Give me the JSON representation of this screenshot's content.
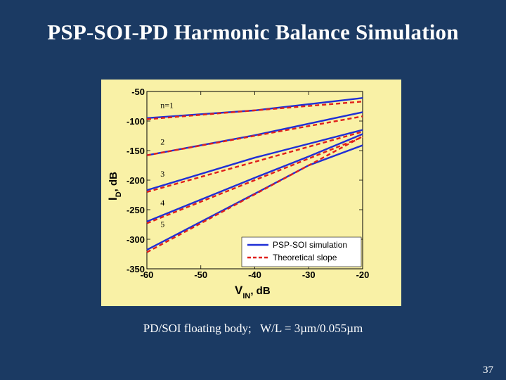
{
  "slide": {
    "title": "PSP-SOI-PD Harmonic Balance Simulation",
    "caption": "PD/SOI floating body;   W/L = 3µm/0.055µm",
    "page_number": "37"
  },
  "chart_data": {
    "type": "line",
    "xlabel_main": "V",
    "xlabel_sub": "IN",
    "xlabel_unit": ", dB",
    "ylabel_main": "I",
    "ylabel_sub": "D",
    "ylabel_unit": ", dB",
    "xlim": [
      -60,
      -20
    ],
    "ylim": [
      -350,
      -50
    ],
    "xticks": [
      -60,
      -50,
      -40,
      -30,
      -20
    ],
    "yticks": [
      -50,
      -100,
      -150,
      -200,
      -250,
      -300,
      -350
    ],
    "grid": false,
    "legend_position": "bottom-right",
    "legend": [
      {
        "label": "PSP-SOI simulation",
        "color": "#1f2fd6",
        "style": "solid"
      },
      {
        "label": "Theoretical slope",
        "color": "#e0201b",
        "style": "dashed"
      }
    ],
    "curve_labels": [
      {
        "text": "n=1",
        "x": -57.5,
        "y": -78
      },
      {
        "text": "2",
        "x": -57.5,
        "y": -140
      },
      {
        "text": "3",
        "x": -57.5,
        "y": -194
      },
      {
        "text": "4",
        "x": -57.5,
        "y": -243
      },
      {
        "text": "5",
        "x": -57.5,
        "y": -279
      }
    ],
    "series": [
      {
        "group": "PSP-SOI simulation",
        "harmonic": 1,
        "x": [
          -60,
          -40,
          -20
        ],
        "y": [
          -95,
          -82,
          -61
        ]
      },
      {
        "group": "PSP-SOI simulation",
        "harmonic": 2,
        "x": [
          -60,
          -40,
          -20
        ],
        "y": [
          -158,
          -124,
          -85
        ]
      },
      {
        "group": "PSP-SOI simulation",
        "harmonic": 3,
        "x": [
          -60,
          -40,
          -20
        ],
        "y": [
          -217,
          -162,
          -115
        ]
      },
      {
        "group": "PSP-SOI simulation",
        "harmonic": 4,
        "x": [
          -60,
          -40,
          -30,
          -20
        ],
        "y": [
          -270,
          -196,
          -160,
          -122
        ]
      },
      {
        "group": "PSP-SOI simulation",
        "harmonic": 5,
        "x": [
          -60,
          -40,
          -30,
          -20
        ],
        "y": [
          -318,
          -223,
          -175,
          -141
        ]
      },
      {
        "group": "Theoretical slope",
        "harmonic": 1,
        "x": [
          -60,
          -20
        ],
        "y": [
          -97,
          -67
        ]
      },
      {
        "group": "Theoretical slope",
        "harmonic": 2,
        "x": [
          -60,
          -20
        ],
        "y": [
          -158,
          -92
        ]
      },
      {
        "group": "Theoretical slope",
        "harmonic": 3,
        "x": [
          -60,
          -20
        ],
        "y": [
          -220,
          -118
        ]
      },
      {
        "group": "Theoretical slope",
        "harmonic": 4,
        "x": [
          -60,
          -20
        ],
        "y": [
          -273,
          -127
        ]
      },
      {
        "group": "Theoretical slope",
        "harmonic": 5,
        "x": [
          -60,
          -20
        ],
        "y": [
          -322,
          -126
        ]
      }
    ]
  }
}
